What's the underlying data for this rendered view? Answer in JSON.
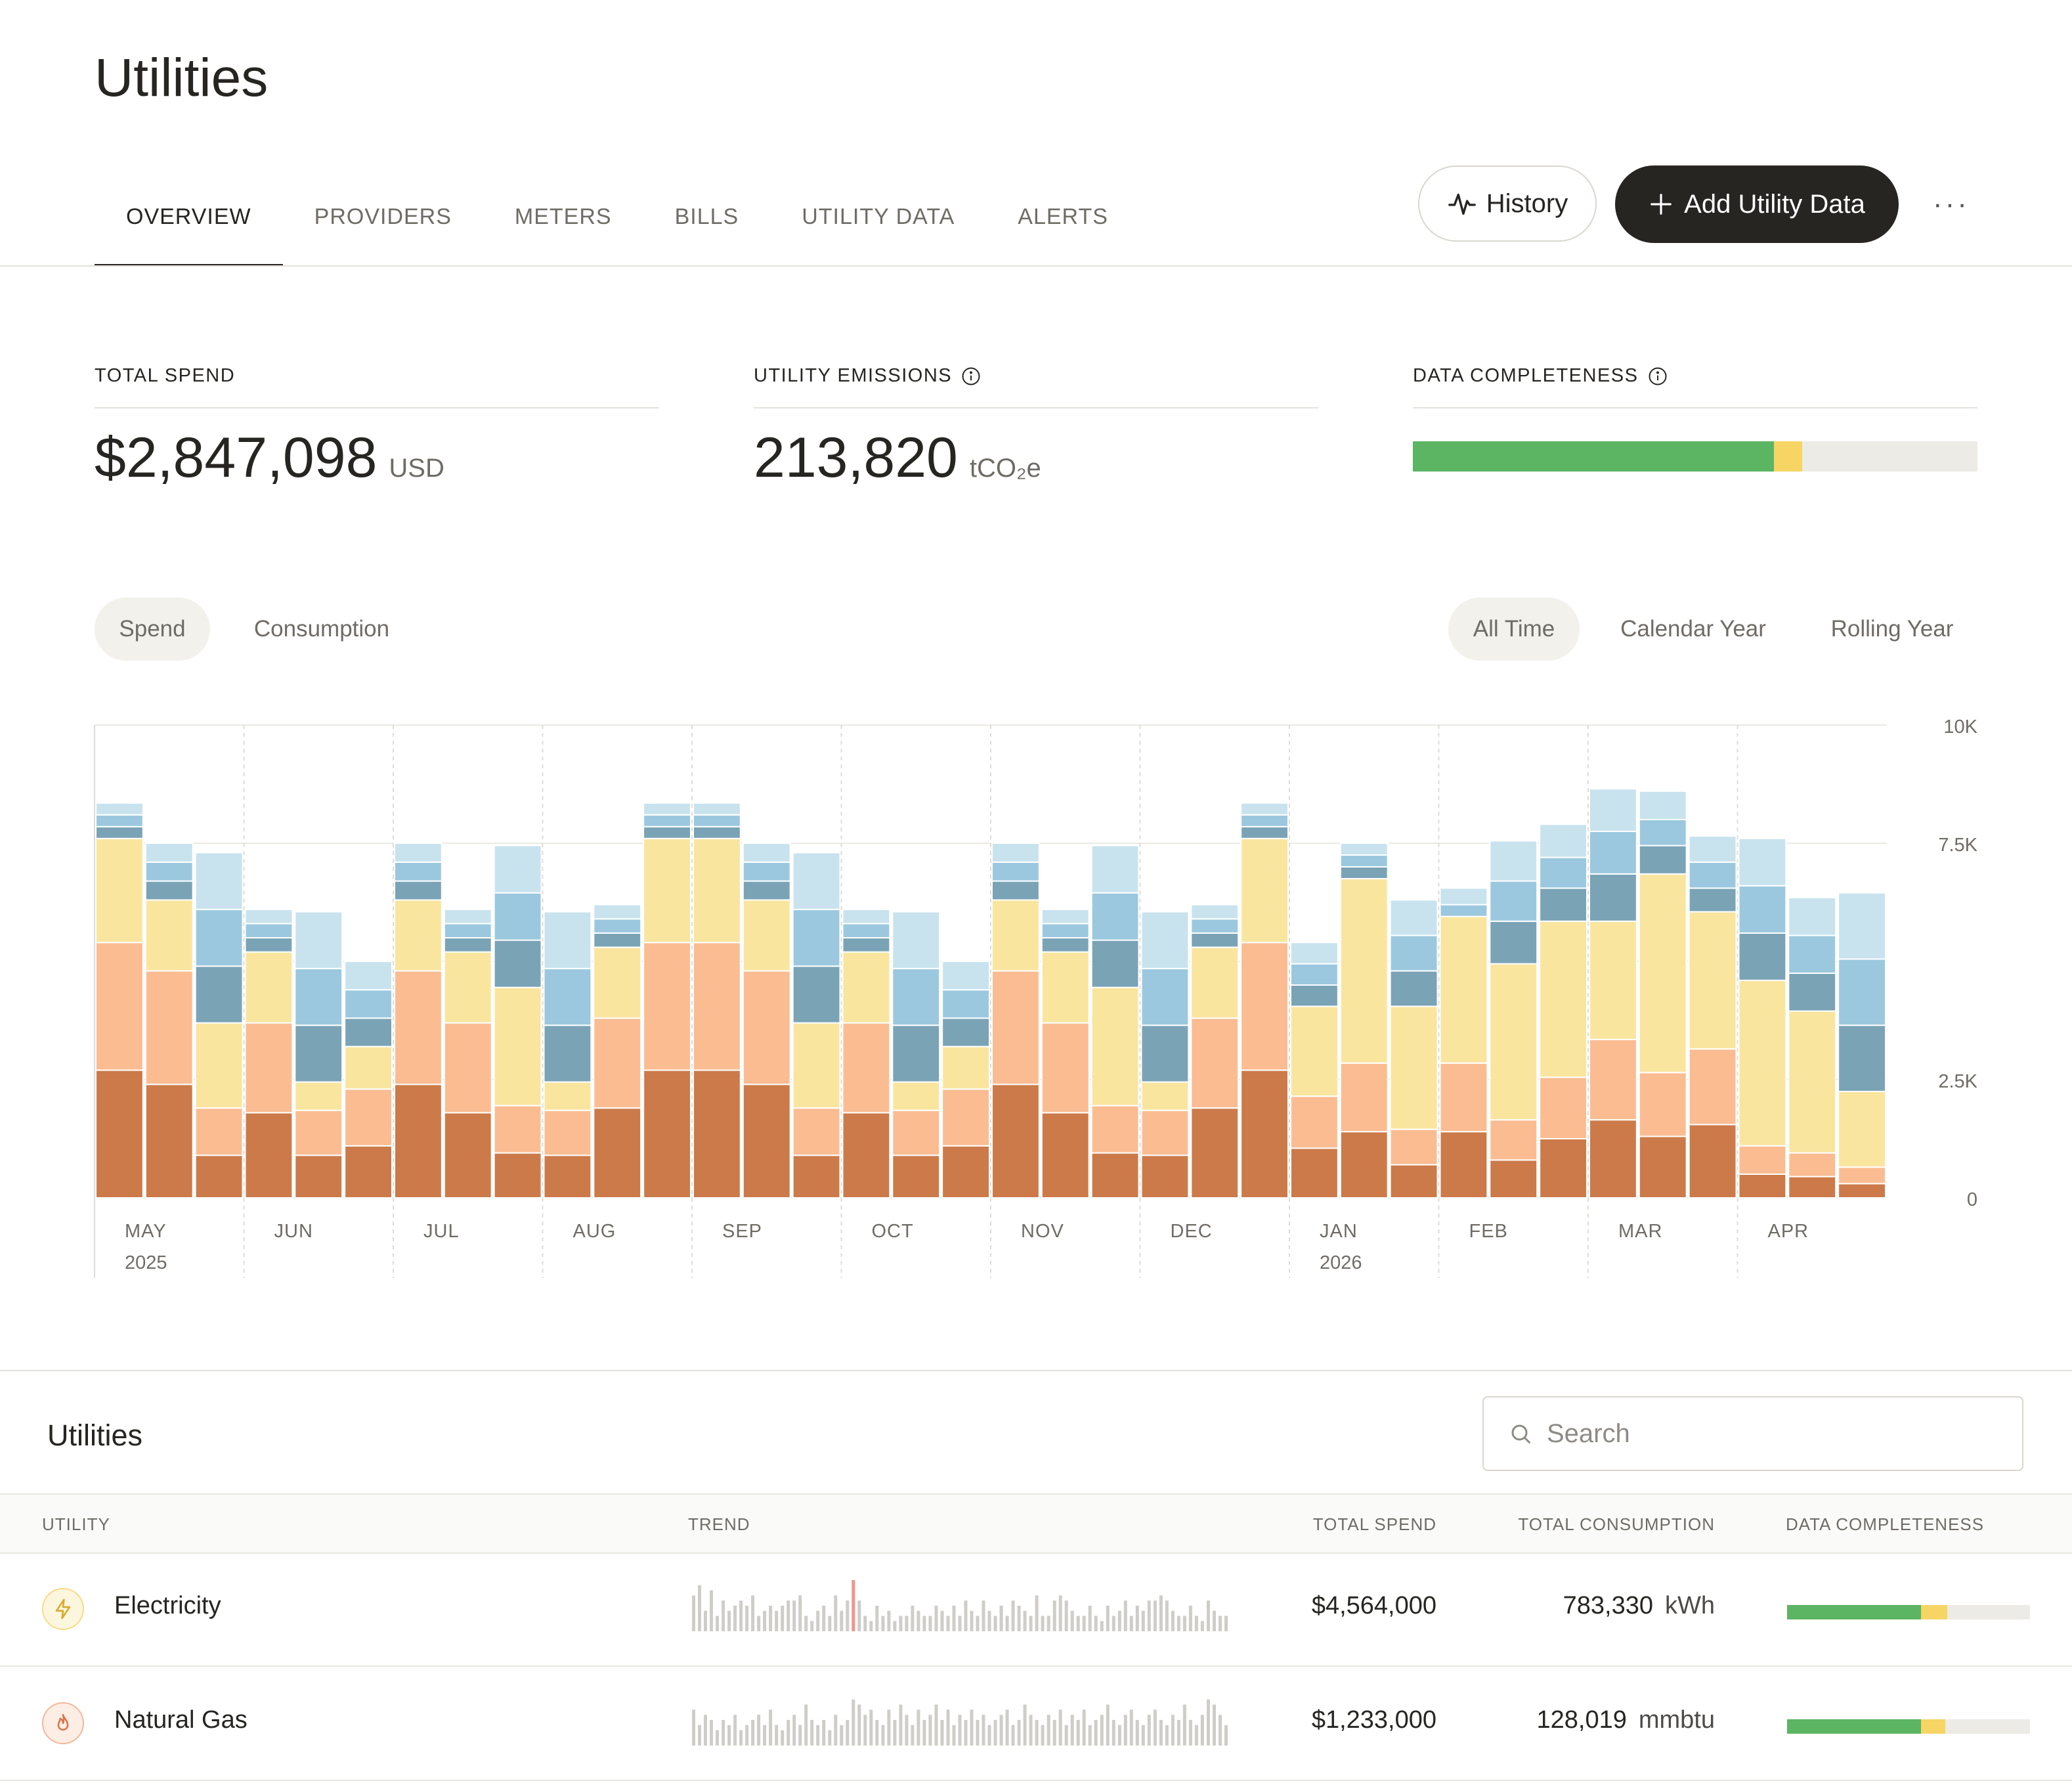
{
  "page": {
    "title": "Utilities"
  },
  "tabs": [
    "OVERVIEW",
    "PROVIDERS",
    "METERS",
    "BILLS",
    "UTILITY DATA",
    "ALERTS"
  ],
  "actions": {
    "history": "History",
    "add": "Add Utility Data",
    "more": "···"
  },
  "kpis": {
    "spend": {
      "label": "TOTAL SPEND",
      "value": "$2,847,098",
      "unit": "USD"
    },
    "emissions": {
      "label": "UTILITY EMISSIONS",
      "value": "213,820",
      "unit": "tCO₂e"
    },
    "completeness": {
      "label": "DATA COMPLETENESS",
      "complete": 0.64,
      "partial": 0.05
    }
  },
  "toggles": {
    "metric": [
      "Spend",
      "Consumption"
    ],
    "metric_selected": "Spend",
    "range": [
      "All Time",
      "Calendar Year",
      "Rolling Year"
    ],
    "range_selected": "All Time"
  },
  "colors": {
    "s1": "#cc7a4a",
    "s2": "#fbbc92",
    "s3": "#fae59f",
    "s4": "#7aa3b6",
    "s5": "#9bc8df",
    "s6": "#c8e3ee",
    "green": "#5bb563",
    "yellow": "#f6d565",
    "track": "#ecebe5",
    "ink": "#262522"
  },
  "chart_data": {
    "type": "bar",
    "stacked": true,
    "ylim": [
      0,
      10000
    ],
    "yticks": [
      "10K",
      "7.5K",
      "2.5K",
      "0"
    ],
    "month_labels": [
      "MAY",
      "JUN",
      "JUL",
      "AUG",
      "SEP",
      "OCT",
      "NOV",
      "DEC",
      "JAN",
      "FEB",
      "MAR",
      "APR"
    ],
    "year_labels": {
      "MAY": "2025",
      "JAN": "2026"
    },
    "grid": true,
    "series": [
      {
        "values": [
          2700,
          2400,
          900,
          1800,
          900,
          1100,
          2400,
          1800,
          950,
          900,
          1900,
          2700,
          2700,
          2400,
          900,
          1800,
          900,
          1100,
          2400,
          1800,
          950,
          900,
          1900,
          2700,
          1050,
          1400,
          700,
          1400,
          800,
          1250,
          1650,
          1300,
          1550,
          500,
          450,
          300
        ]
      },
      {
        "values": [
          2700,
          2400,
          1000,
          1900,
          950,
          1200,
          2400,
          1900,
          1000,
          950,
          1900,
          2700,
          2700,
          2400,
          1000,
          1900,
          950,
          1200,
          2400,
          1900,
          1000,
          950,
          1900,
          2700,
          1100,
          1450,
          750,
          1450,
          850,
          1300,
          1700,
          1350,
          1600,
          600,
          500,
          350
        ]
      },
      {
        "values": [
          2200,
          1500,
          1800,
          1500,
          600,
          900,
          1500,
          1500,
          2500,
          600,
          1500,
          2200,
          2200,
          1500,
          1800,
          1500,
          600,
          900,
          1500,
          1500,
          2500,
          600,
          1500,
          2200,
          1900,
          3900,
          2600,
          3100,
          3300,
          3300,
          2500,
          4200,
          2900,
          3500,
          3000,
          1600
        ]
      },
      {
        "values": [
          250,
          400,
          1200,
          300,
          1200,
          600,
          400,
          300,
          1000,
          1200,
          300,
          250,
          250,
          400,
          1200,
          300,
          1200,
          600,
          400,
          300,
          1000,
          1200,
          300,
          250,
          450,
          250,
          750,
          0,
          900,
          700,
          1000,
          600,
          500,
          1000,
          800,
          1400
        ]
      },
      {
        "values": [
          250,
          400,
          1200,
          300,
          1200,
          600,
          400,
          300,
          1000,
          1200,
          300,
          250,
          250,
          400,
          1200,
          300,
          1200,
          600,
          400,
          300,
          1000,
          1200,
          300,
          250,
          450,
          250,
          750,
          250,
          850,
          650,
          900,
          550,
          550,
          1000,
          800,
          1400
        ]
      },
      {
        "values": [
          250,
          400,
          1200,
          300,
          1200,
          600,
          400,
          300,
          1000,
          1200,
          300,
          250,
          250,
          400,
          1200,
          300,
          1200,
          600,
          400,
          300,
          1000,
          1200,
          300,
          250,
          450,
          250,
          750,
          350,
          850,
          700,
          900,
          600,
          550,
          1000,
          800,
          1400
        ]
      }
    ]
  },
  "table": {
    "title": "Utilities",
    "search_placeholder": "Search",
    "columns": [
      "UTILITY",
      "TREND",
      "TOTAL SPEND",
      "TOTAL CONSUMPTION",
      "DATA COMPLETENESS"
    ],
    "rows": [
      {
        "name": "Electricity",
        "icon": "lightning-icon",
        "spend": "$4,564,000",
        "consumption": "783,330",
        "unit": "kWh",
        "complete": 0.55,
        "partial": 0.11,
        "trend": [
          0.7,
          0.9,
          0.4,
          0.8,
          0.3,
          0.6,
          0.4,
          0.5,
          0.6,
          0.5,
          0.7,
          0.3,
          0.4,
          0.5,
          0.4,
          0.5,
          0.6,
          0.6,
          0.7,
          0.3,
          0.2,
          0.4,
          0.5,
          0.3,
          0.7,
          0.4,
          0.6,
          1.0,
          0.6,
          0.3,
          0.2,
          0.5,
          0.3,
          0.4,
          0.2,
          0.3,
          0.3,
          0.5,
          0.4,
          0.3,
          0.3,
          0.5,
          0.4,
          0.3,
          0.5,
          0.3,
          0.6,
          0.4,
          0.3,
          0.6,
          0.4,
          0.3,
          0.5,
          0.3,
          0.6,
          0.5,
          0.4,
          0.3,
          0.7,
          0.3,
          0.3,
          0.6,
          0.7,
          0.6,
          0.4,
          0.3,
          0.3,
          0.5,
          0.3,
          0.2,
          0.5,
          0.3,
          0.4,
          0.6,
          0.3,
          0.5,
          0.4,
          0.6,
          0.6,
          0.7,
          0.6,
          0.4,
          0.3,
          0.3,
          0.5,
          0.3,
          0.2,
          0.6,
          0.4,
          0.3,
          0.3
        ],
        "highlight": 27
      },
      {
        "name": "Natural Gas",
        "icon": "flame-icon",
        "spend": "$1,233,000",
        "consumption": "128,019",
        "unit": "mmbtu",
        "complete": 0.55,
        "partial": 0.1,
        "trend": [
          0.7,
          0.4,
          0.6,
          0.5,
          0.3,
          0.5,
          0.4,
          0.6,
          0.3,
          0.4,
          0.5,
          0.6,
          0.4,
          0.7,
          0.4,
          0.3,
          0.5,
          0.6,
          0.4,
          0.8,
          0.5,
          0.4,
          0.5,
          0.3,
          0.6,
          0.4,
          0.5,
          0.9,
          0.8,
          0.6,
          0.7,
          0.5,
          0.4,
          0.7,
          0.5,
          0.8,
          0.6,
          0.4,
          0.7,
          0.5,
          0.6,
          0.8,
          0.5,
          0.7,
          0.4,
          0.6,
          0.5,
          0.7,
          0.5,
          0.6,
          0.4,
          0.5,
          0.6,
          0.7,
          0.4,
          0.5,
          0.8,
          0.6,
          0.5,
          0.4,
          0.6,
          0.5,
          0.7,
          0.4,
          0.6,
          0.5,
          0.7,
          0.4,
          0.5,
          0.6,
          0.8,
          0.5,
          0.4,
          0.6,
          0.7,
          0.5,
          0.4,
          0.6,
          0.7,
          0.5,
          0.4,
          0.6,
          0.5,
          0.8,
          0.5,
          0.4,
          0.6,
          0.9,
          0.8,
          0.6,
          0.4
        ],
        "highlight": -1
      }
    ]
  }
}
